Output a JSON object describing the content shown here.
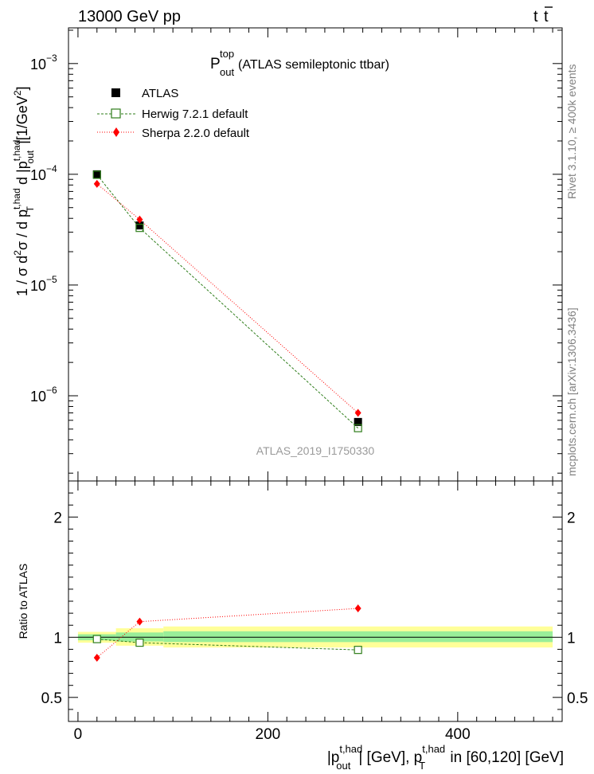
{
  "header": {
    "left": "13000 GeV pp",
    "right_base": "t",
    "right_bar": "t"
  },
  "side_labels": {
    "rivet": "Rivet 3.1.10, ≥ 400k events",
    "mcplots": "mcplots.cern.ch [arXiv:1306.3436]"
  },
  "chart_data": [
    {
      "type": "scatter",
      "title": {
        "main": "P",
        "sup": "top",
        "sub": "out",
        "rest": " (ATLAS semileptonic ttbar)"
      },
      "watermark": "ATLAS_2019_I1750330",
      "ylabel_html": "1 / σ d²σ / d p_T^{t,had} d |p_out^{t,had}| [1/GeV²]",
      "ylabel": {
        "t1": "1 / σ d",
        "t1_sup": "2",
        "t2": "σ / d p",
        "t2_sup": "t,had",
        "t2_sub": "T",
        "t3": " d |p",
        "t3_sup": "t,had",
        "t3_sub": "out",
        "t4": "|[1/GeV",
        "t4_sup": "2",
        "t5": "]"
      },
      "yscale": "log",
      "ylim": [
        1.7e-07,
        0.0021
      ],
      "xlim": [
        -10,
        510
      ],
      "ytick_labels": [
        {
          "base": "10",
          "exp": "−3",
          "value": 0.001
        },
        {
          "base": "10",
          "exp": "−4",
          "value": 0.0001
        },
        {
          "base": "10",
          "exp": "−5",
          "value": 1e-05
        },
        {
          "base": "10",
          "exp": "−6",
          "value": 1e-06
        }
      ],
      "legend_position": "top-left",
      "series": [
        {
          "name": "ATLAS",
          "marker": "filled-square",
          "color": "#000000",
          "x": [
            20,
            65,
            295
          ],
          "y": [
            0.0001,
            3.45e-05,
            5.8e-07
          ]
        },
        {
          "name": "Herwig 7.2.1 default",
          "marker": "open-square",
          "color": "#2e7d1a",
          "line": "dashed",
          "x": [
            20,
            65,
            295
          ],
          "y": [
            9.9e-05,
            3.28e-05,
            5.1e-07
          ]
        },
        {
          "name": "Sherpa 2.2.0 default",
          "marker": "diamond",
          "color": "#ff0000",
          "line": "dotted",
          "x": [
            20,
            65,
            295
          ],
          "y": [
            8.2e-05,
            3.9e-05,
            7e-07
          ]
        }
      ]
    },
    {
      "type": "scatter",
      "ylabel": "Ratio to ATLAS",
      "ylim": [
        0.3,
        2.3
      ],
      "ytick_labels": [
        "0.5",
        "1",
        "2"
      ],
      "ytick_values": [
        0.5,
        1,
        2
      ],
      "xtick_labels": [
        "0",
        "200",
        "400"
      ],
      "xtick_values": [
        0,
        200,
        400
      ],
      "xlabel": {
        "t1": "|p",
        "t1_sup": "t,had",
        "t1_sub": "out",
        "t2": "| [GeV], p",
        "t2_sup": "t,had",
        "t2_sub": "T",
        "t3": " in [60,120] [GeV]"
      },
      "bands": [
        {
          "x0": 0,
          "x1": 40,
          "yellow": [
            0.955,
            1.045
          ],
          "green": [
            0.975,
            1.025
          ]
        },
        {
          "x0": 40,
          "x1": 90,
          "yellow": [
            0.93,
            1.075
          ],
          "green": [
            0.965,
            1.04
          ]
        },
        {
          "x0": 90,
          "x1": 500,
          "yellow": [
            0.915,
            1.09
          ],
          "green": [
            0.96,
            1.05
          ]
        }
      ],
      "series": [
        {
          "name": "Herwig 7.2.1 default",
          "x": [
            20,
            65,
            295
          ],
          "y": [
            0.985,
            0.955,
            0.895
          ]
        },
        {
          "name": "Sherpa 2.2.0 default",
          "x": [
            20,
            65,
            295
          ],
          "y": [
            0.83,
            1.13,
            1.24
          ]
        }
      ]
    }
  ],
  "colors": {
    "herwig": "#2e7d1a",
    "sherpa": "#ff0000",
    "band_yellow": "#ffff99",
    "band_green": "#99ee99"
  }
}
